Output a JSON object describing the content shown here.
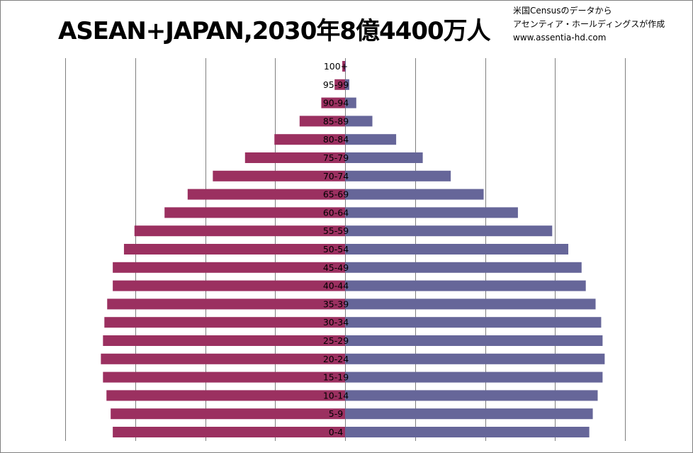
{
  "title": "ASEAN+JAPAN,2030年8億4400万人",
  "credit": {
    "line1": "米国Censusのデータから",
    "line2": "アセンティア・ホールディングスが作成",
    "line3": "www.assentia-hd.com"
  },
  "colors": {
    "left_series": "#9b3060",
    "right_series": "#666699",
    "gridline": "#7f7f7f"
  },
  "chart_data": {
    "type": "bar",
    "orientation": "horizontal",
    "title": "ASEAN+JAPAN,2030年8億4400万人",
    "categories": [
      "0-4",
      "5-9",
      "10-14",
      "15-19",
      "20-24",
      "25-29",
      "30-34",
      "35-39",
      "40-44",
      "45-49",
      "50-54",
      "55-59",
      "60-64",
      "65-69",
      "70-74",
      "75-79",
      "80-84",
      "85-89",
      "90-94",
      "95-99",
      "100+"
    ],
    "series": [
      {
        "values": [
          -33.2,
          -33.5,
          -34.1,
          -34.6,
          -34.9,
          -34.6,
          -34.4,
          -34.0,
          -33.2,
          -33.2,
          -31.6,
          -30.1,
          -25.8,
          -22.5,
          -18.9,
          -14.3,
          -10.1,
          -6.5,
          -3.4,
          -1.5,
          -0.4
        ]
      },
      {
        "values": [
          34.9,
          35.4,
          36.1,
          36.8,
          37.1,
          36.8,
          36.6,
          35.8,
          34.4,
          33.8,
          31.9,
          29.6,
          24.7,
          19.8,
          15.1,
          11.1,
          7.3,
          3.9,
          1.6,
          0.6,
          0.1
        ]
      }
    ],
    "xlim": [
      -48,
      48
    ],
    "grid": true,
    "legend": false
  }
}
